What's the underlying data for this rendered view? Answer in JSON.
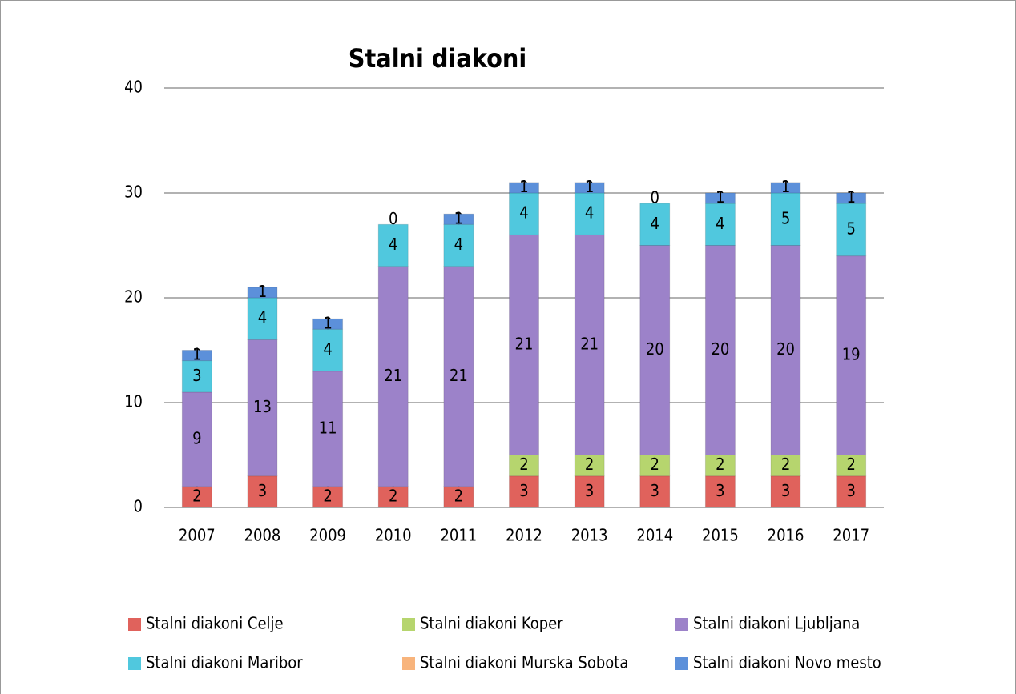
{
  "chart_data": {
    "type": "stacked_bar",
    "title": "Stalni diakoni",
    "categories": [
      "2007",
      "2008",
      "2009",
      "2010",
      "2011",
      "2012",
      "2013",
      "2014",
      "2015",
      "2016",
      "2017"
    ],
    "series": [
      {
        "name": "Stalni diakoni Celje",
        "color": "#e0625c",
        "values": [
          2,
          3,
          2,
          2,
          2,
          3,
          3,
          3,
          3,
          3,
          3
        ]
      },
      {
        "name": "Stalni diakoni Koper",
        "color": "#b6d56e",
        "values": [
          0,
          0,
          0,
          0,
          0,
          2,
          2,
          2,
          2,
          2,
          2
        ]
      },
      {
        "name": "Stalni diakoni Ljubljana",
        "color": "#9c82c9",
        "values": [
          9,
          13,
          11,
          21,
          21,
          21,
          21,
          20,
          20,
          20,
          19
        ]
      },
      {
        "name": "Stalni diakoni Maribor",
        "color": "#50c8de",
        "values": [
          3,
          4,
          4,
          4,
          4,
          4,
          4,
          4,
          4,
          5,
          5
        ]
      },
      {
        "name": "Stalni diakoni Murska Sobota",
        "color": "#f8b47c",
        "values": [
          0,
          0,
          0,
          0,
          0,
          0,
          0,
          0,
          0,
          0,
          0
        ]
      },
      {
        "name": "Stalni diakoni Novo mesto",
        "color": "#5c90da",
        "values": [
          1,
          1,
          1,
          null,
          1,
          1,
          1,
          null,
          1,
          1,
          1
        ]
      }
    ],
    "ylim": [
      0,
      40
    ],
    "yticks": [
      0,
      10,
      20,
      30,
      40
    ],
    "grid": true
  }
}
